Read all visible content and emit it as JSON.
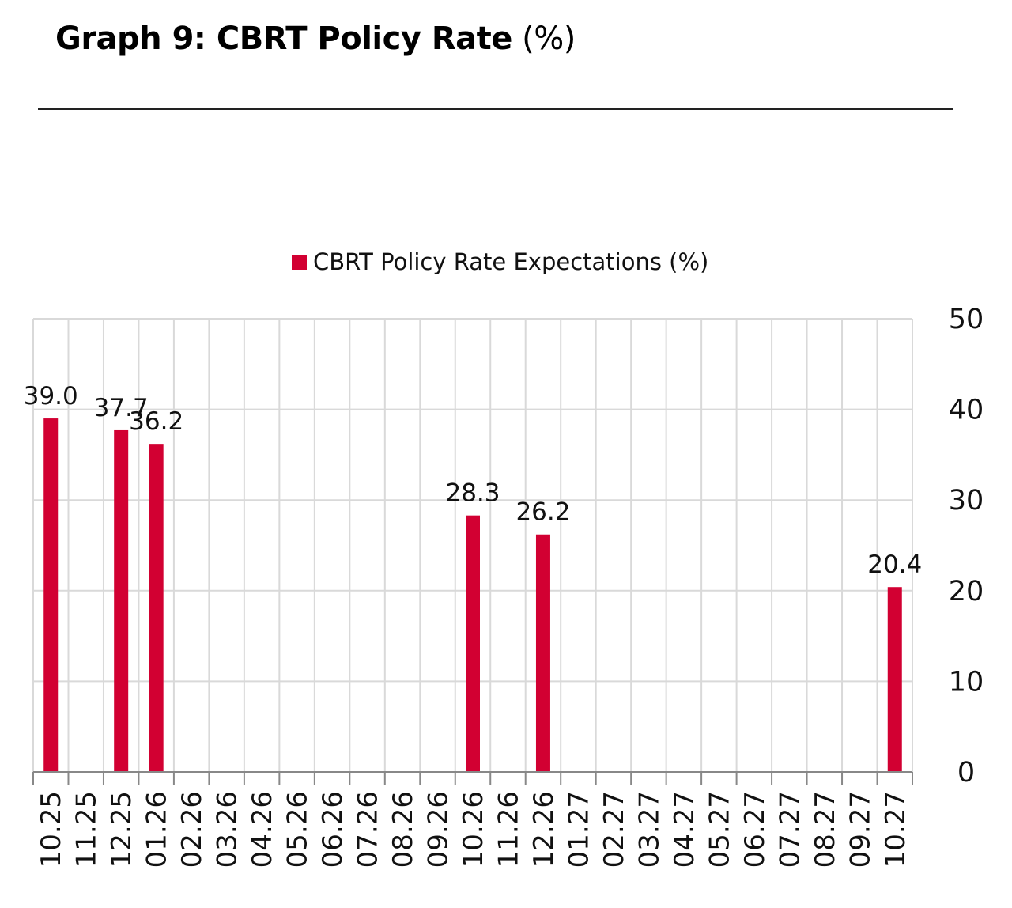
{
  "header": {
    "title_bold": "Graph 9: CBRT Policy Rate",
    "title_unit": "(%)"
  },
  "chart_data": {
    "type": "bar",
    "title": "Graph 9: CBRT Policy Rate (%)",
    "xlabel": "",
    "ylabel": "",
    "legend": {
      "position": "top-center",
      "entries": [
        {
          "name": "CBRT Policy Rate Expectations (%)",
          "color": "#d20032"
        }
      ]
    },
    "categories": [
      "10.25",
      "11.25",
      "12.25",
      "01.26",
      "02.26",
      "03.26",
      "04.26",
      "05.26",
      "06.26",
      "07.26",
      "08.26",
      "09.26",
      "10.26",
      "11.26",
      "12.26",
      "01.27",
      "02.27",
      "03.27",
      "04.27",
      "05.27",
      "06.27",
      "07.27",
      "08.27",
      "09.27",
      "10.27"
    ],
    "series": [
      {
        "name": "CBRT Policy Rate Expectations (%)",
        "color": "#d20032",
        "values": [
          39.0,
          null,
          37.7,
          36.2,
          null,
          null,
          null,
          null,
          null,
          null,
          null,
          null,
          28.3,
          null,
          26.2,
          null,
          null,
          null,
          null,
          null,
          null,
          null,
          null,
          null,
          20.4
        ],
        "labels": [
          "39.0",
          "",
          "37.7",
          "36.2",
          "",
          "",
          "",
          "",
          "",
          "",
          "",
          "",
          "28.3",
          "",
          "26.2",
          "",
          "",
          "",
          "",
          "",
          "",
          "",
          "",
          "",
          "20.4"
        ]
      }
    ],
    "y_axis": {
      "side": "right",
      "ylim": [
        0,
        50
      ],
      "ticks": [
        0,
        10,
        20,
        30,
        40,
        50
      ]
    },
    "grid": {
      "horizontal": true,
      "vertical": true,
      "color": "#d9d9d9"
    },
    "x_tick_rotation": "vertical"
  }
}
